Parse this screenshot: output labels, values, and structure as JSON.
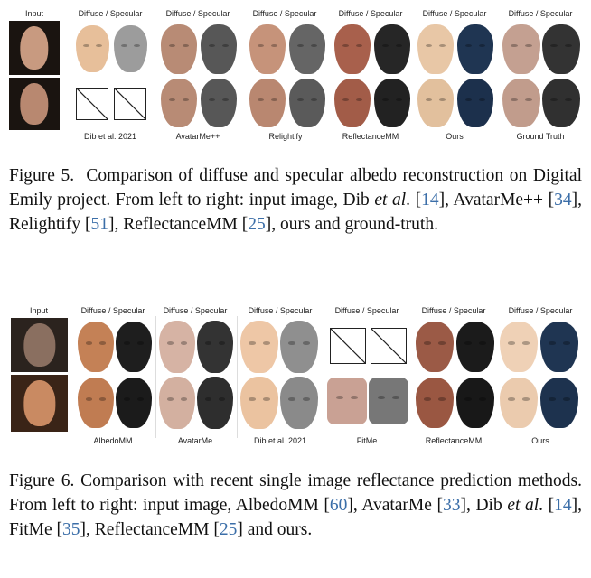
{
  "figure5": {
    "header_input": "Input",
    "header_pair": "Diffuse / Specular",
    "methods": [
      "Dib et al. 2021",
      "AvatarMe++",
      "Relightify",
      "ReflectanceMM",
      "Ours",
      "Ground Truth"
    ],
    "caption": {
      "label": "Figure 5.",
      "p1": "Comparison of diffuse and specular albedo reconstruction on Digital Emily project. From left to right: input image, Dib ",
      "etal1": "et al",
      "p2": ". [",
      "r14": "14",
      "p3": "], AvatarMe++ [",
      "r34": "34",
      "p4": "], Relightify [",
      "r51": "51",
      "p5": "], ReflectanceMM [",
      "r25": "25",
      "p6": "], ours and ground-truth."
    }
  },
  "figure6": {
    "header_input": "Input",
    "header_pair": "Diffuse / Specular",
    "methods": [
      "AlbedoMM",
      "AvatarMe",
      "Dib et al. 2021",
      "FitMe",
      "ReflectanceMM",
      "Ours"
    ],
    "caption": {
      "label": "Figure 6.",
      "p1": "Comparison with recent single image reflectance prediction methods. From left to right: input image, AlbedoMM [",
      "r60": "60",
      "p2": "], AvatarMe [",
      "r33": "33",
      "p3": "], Dib ",
      "etal": "et al",
      "p4": ". [",
      "r14": "14",
      "p5": "], FitMe [",
      "r35": "35",
      "p6": "], ReflectanceMM [",
      "r25": "25",
      "p7": "] and ours."
    }
  },
  "colors": {
    "reference_link": "#3b6ea8",
    "diffuse_skin": "#d9a98a",
    "specular_gray": "#5a5a5a",
    "ours_specular_blue": "#1f3552"
  }
}
